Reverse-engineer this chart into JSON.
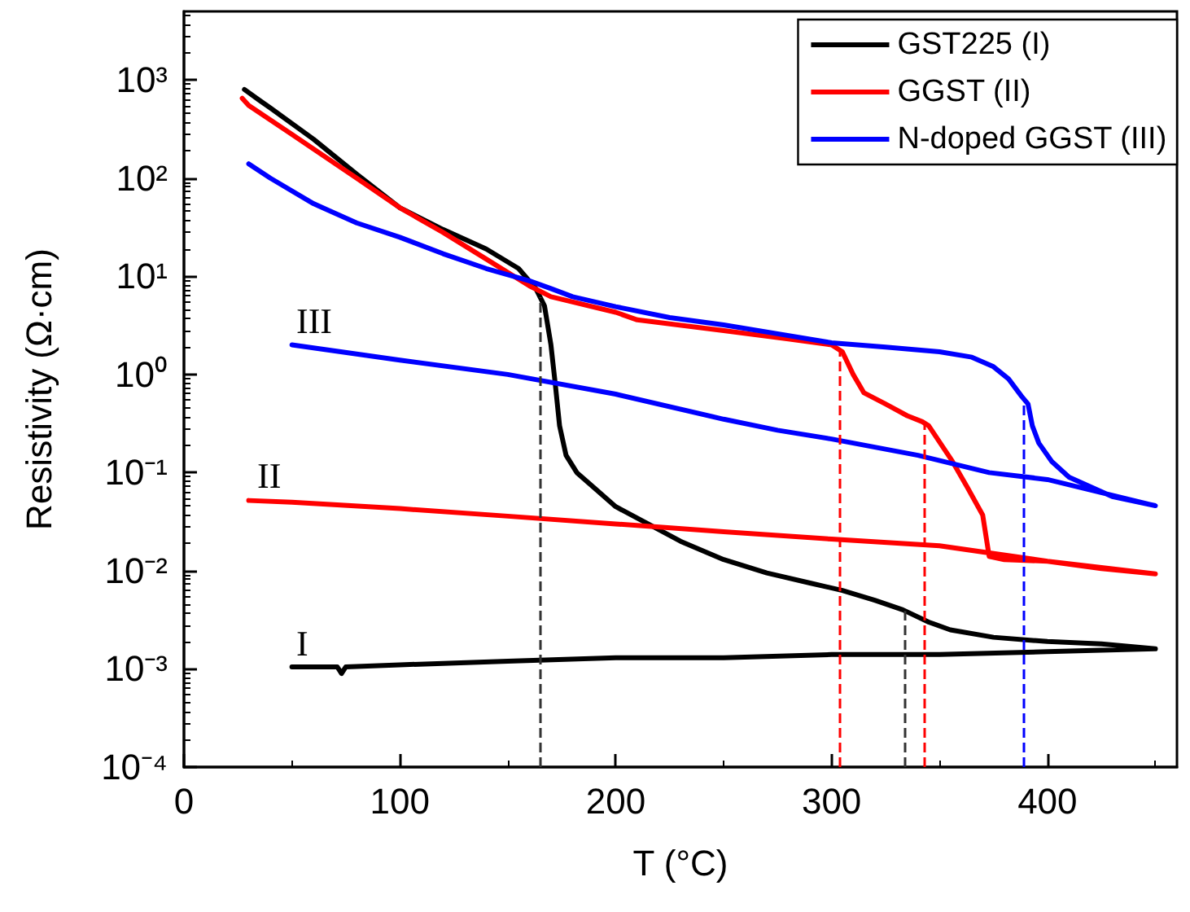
{
  "chart_data": {
    "type": "line",
    "xlabel": "T (°C)",
    "ylabel": "Resistivity (Ω·cm)",
    "log": "y",
    "marker": "none",
    "legend": "top right",
    "xlim": [
      0,
      460
    ],
    "xticks": [
      0,
      100,
      200,
      300,
      400
    ],
    "ylim": [
      0.0001,
      5000
    ],
    "yticks": [
      {
        "value": 0.0001,
        "label": "10⁻⁴"
      },
      {
        "value": 0.001,
        "label": "10⁻³"
      },
      {
        "value": 0.01,
        "label": "10⁻²"
      },
      {
        "value": 0.1,
        "label": "10⁻¹"
      },
      {
        "value": 1,
        "label": "10⁰"
      },
      {
        "value": 10,
        "label": "10¹"
      },
      {
        "value": 100,
        "label": "10²"
      },
      {
        "value": 1000,
        "label": "10³"
      }
    ],
    "series": [
      {
        "name": "GST225 (I)",
        "color": "#000000",
        "x": [
          28,
          35,
          40,
          60,
          80,
          100,
          120,
          140,
          155,
          163,
          167,
          170,
          172,
          174,
          177,
          182,
          190,
          200,
          215,
          230,
          250,
          270,
          290,
          305,
          320,
          333,
          345,
          355,
          375,
          400,
          425,
          450,
          400,
          350,
          300,
          250,
          200,
          150,
          100,
          75,
          73,
          71,
          50
        ],
        "values": [
          800,
          620,
          520,
          250,
          110,
          50,
          30,
          19,
          12,
          7.5,
          5,
          2,
          0.8,
          0.3,
          0.15,
          0.1,
          0.07,
          0.045,
          0.03,
          0.02,
          0.013,
          0.0095,
          0.0075,
          0.0063,
          0.005,
          0.004,
          0.003,
          0.0025,
          0.0021,
          0.0019,
          0.0018,
          0.0016,
          0.0015,
          0.0014,
          0.0014,
          0.0013,
          0.0013,
          0.0012,
          0.0011,
          0.00105,
          0.0009,
          0.00105,
          0.00105
        ]
      },
      {
        "name": "GGST (II)",
        "color": "#ff0000",
        "x": [
          27,
          30,
          50,
          80,
          100,
          120,
          140,
          160,
          170,
          200,
          210,
          250,
          280,
          300,
          305,
          310,
          315,
          325,
          335,
          342,
          345,
          356,
          363,
          370,
          373,
          380,
          400,
          425,
          450,
          400,
          350,
          300,
          250,
          200,
          150,
          100,
          50,
          30
        ],
        "values": [
          650,
          550,
          280,
          100,
          50,
          28,
          15,
          8,
          6.2,
          4.3,
          3.6,
          2.8,
          2.3,
          2.0,
          1.7,
          1.0,
          0.65,
          0.5,
          0.38,
          0.33,
          0.3,
          0.13,
          0.07,
          0.037,
          0.014,
          0.013,
          0.0125,
          0.0105,
          0.0093,
          0.0125,
          0.018,
          0.021,
          0.025,
          0.03,
          0.036,
          0.043,
          0.05,
          0.052
        ]
      },
      {
        "name": "N-doped GGST (III)",
        "color": "#0000ff",
        "x": [
          30,
          40,
          60,
          80,
          100,
          120,
          140,
          160,
          170,
          180,
          200,
          225,
          250,
          275,
          300,
          325,
          350,
          365,
          375,
          382,
          388,
          391,
          393,
          396,
          402,
          410,
          430,
          450,
          400,
          373,
          340,
          300,
          275,
          250,
          200,
          150,
          100,
          50
        ],
        "values": [
          140,
          100,
          55,
          35,
          25,
          17,
          12,
          9,
          7.5,
          6.2,
          4.9,
          3.8,
          3.2,
          2.6,
          2.1,
          1.9,
          1.7,
          1.5,
          1.2,
          0.9,
          0.6,
          0.5,
          0.3,
          0.2,
          0.13,
          0.09,
          0.057,
          0.046,
          0.085,
          0.1,
          0.15,
          0.22,
          0.27,
          0.35,
          0.63,
          1.0,
          1.4,
          2.0
        ]
      }
    ],
    "ref_lines": [
      {
        "axis": "x",
        "value": 165,
        "color": "#333333",
        "line_style": "dashed"
      },
      {
        "axis": "x",
        "value": 334,
        "color": "#333333",
        "line_style": "dashed"
      },
      {
        "axis": "x",
        "value": 304,
        "color": "#ff0000",
        "line_style": "dashed"
      },
      {
        "axis": "x",
        "value": 343,
        "color": "#ff0000",
        "line_style": "dashed"
      },
      {
        "axis": "x",
        "value": 389,
        "color": "#0000ff",
        "line_style": "dashed"
      }
    ],
    "annotations": [
      "III",
      "II",
      "I"
    ]
  }
}
